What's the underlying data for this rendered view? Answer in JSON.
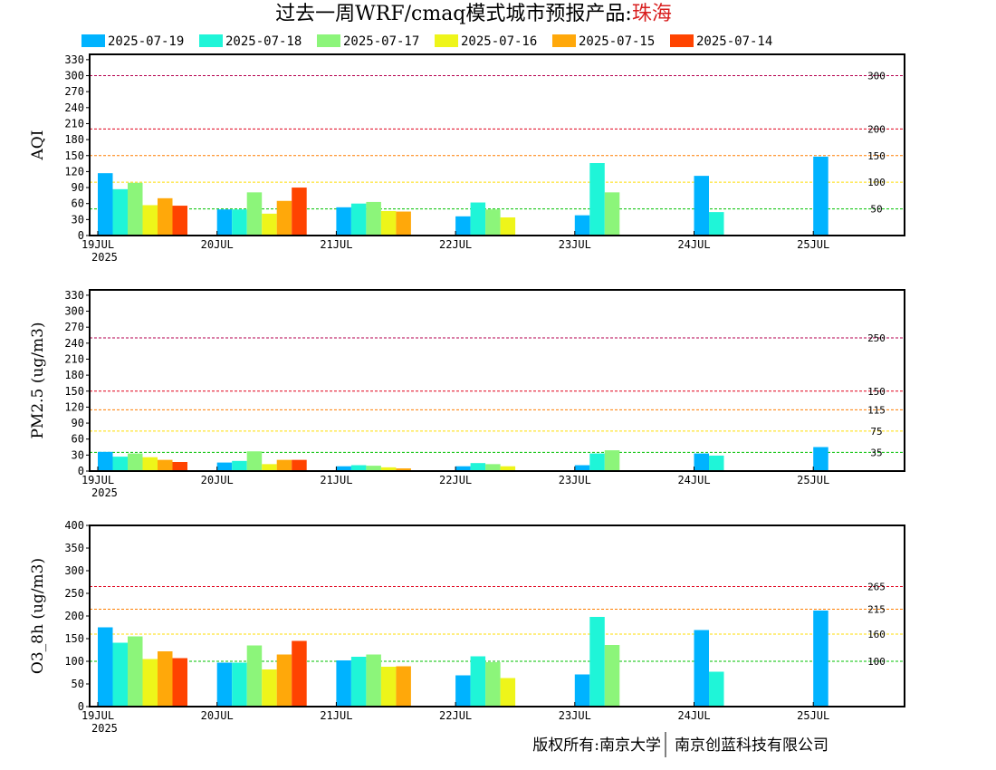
{
  "title": {
    "main": "过去一周WRF/cmaq模式城市预报产品:",
    "city": "珠海",
    "city_color": "#d81e1e"
  },
  "legend": [
    {
      "label": "2025-07-19",
      "color": "#00b3ff"
    },
    {
      "label": "2025-07-18",
      "color": "#1ff5d8"
    },
    {
      "label": "2025-07-17",
      "color": "#8cf57a"
    },
    {
      "label": "2025-07-16",
      "color": "#eef51a"
    },
    {
      "label": "2025-07-15",
      "color": "#ffa80a"
    },
    {
      "label": "2025-07-14",
      "color": "#ff4300"
    }
  ],
  "copyright": {
    "left": "版权所有:南京大学",
    "right": "南京创蓝科技有限公司"
  },
  "chart_data": [
    {
      "type": "bar",
      "ylabel": "AQI",
      "ylim": [
        0,
        340
      ],
      "yticks": [
        0,
        30,
        60,
        90,
        120,
        150,
        180,
        210,
        240,
        270,
        300,
        330
      ],
      "categories": [
        "19JUL",
        "20JUL",
        "21JUL",
        "22JUL",
        "23JUL",
        "24JUL",
        "25JUL"
      ],
      "year_label": "2025",
      "thresholds": [
        {
          "value": 300,
          "label": "300",
          "color": "#b5004f"
        },
        {
          "value": 200,
          "label": "200",
          "color": "#e0001b"
        },
        {
          "value": 150,
          "label": "150",
          "color": "#ff7e00"
        },
        {
          "value": 100,
          "label": "100",
          "color": "#ffdd00"
        },
        {
          "value": 50,
          "label": "50",
          "color": "#00c000"
        }
      ],
      "series": [
        {
          "name": "2025-07-19",
          "values": [
            117,
            49,
            53,
            36,
            38,
            112,
            148
          ]
        },
        {
          "name": "2025-07-18",
          "values": [
            87,
            49,
            60,
            62,
            136,
            44,
            null
          ]
        },
        {
          "name": "2025-07-17",
          "values": [
            99,
            81,
            63,
            49,
            81,
            null,
            null
          ]
        },
        {
          "name": "2025-07-16",
          "values": [
            57,
            41,
            46,
            34,
            null,
            null,
            null
          ]
        },
        {
          "name": "2025-07-15",
          "values": [
            70,
            65,
            45,
            null,
            null,
            null,
            null
          ]
        },
        {
          "name": "2025-07-14",
          "values": [
            56,
            90,
            null,
            null,
            null,
            null,
            null
          ]
        }
      ]
    },
    {
      "type": "bar",
      "ylabel": "PM2.5 (ug/m3)",
      "ylim": [
        0,
        340
      ],
      "yticks": [
        0,
        30,
        60,
        90,
        120,
        150,
        180,
        210,
        240,
        270,
        300,
        330
      ],
      "categories": [
        "19JUL",
        "20JUL",
        "21JUL",
        "22JUL",
        "23JUL",
        "24JUL",
        "25JUL"
      ],
      "year_label": "2025",
      "thresholds": [
        {
          "value": 250,
          "label": "250",
          "color": "#b5004f"
        },
        {
          "value": 150,
          "label": "150",
          "color": "#e0001b"
        },
        {
          "value": 115,
          "label": "115",
          "color": "#ff7e00"
        },
        {
          "value": 75,
          "label": "75",
          "color": "#ffdd00"
        },
        {
          "value": 35,
          "label": "35",
          "color": "#00c000"
        }
      ],
      "series": [
        {
          "name": "2025-07-19",
          "values": [
            36,
            16,
            9,
            9,
            11,
            33,
            45
          ]
        },
        {
          "name": "2025-07-18",
          "values": [
            27,
            19,
            11,
            15,
            33,
            29,
            null
          ]
        },
        {
          "name": "2025-07-17",
          "values": [
            33,
            37,
            10,
            13,
            39,
            null,
            null
          ]
        },
        {
          "name": "2025-07-16",
          "values": [
            26,
            13,
            7,
            9,
            null,
            null,
            null
          ]
        },
        {
          "name": "2025-07-15",
          "values": [
            21,
            21,
            5,
            null,
            null,
            null,
            null
          ]
        },
        {
          "name": "2025-07-14",
          "values": [
            17,
            21,
            null,
            null,
            null,
            null,
            null
          ]
        }
      ]
    },
    {
      "type": "bar",
      "ylabel": "O3_8h (ug/m3)",
      "ylim": [
        0,
        400
      ],
      "yticks": [
        0,
        50,
        100,
        150,
        200,
        250,
        300,
        350,
        400
      ],
      "categories": [
        "19JUL",
        "20JUL",
        "21JUL",
        "22JUL",
        "23JUL",
        "24JUL",
        "25JUL"
      ],
      "year_label": "2025",
      "thresholds": [
        {
          "value": 265,
          "label": "265",
          "color": "#e0001b"
        },
        {
          "value": 215,
          "label": "215",
          "color": "#ff7e00"
        },
        {
          "value": 160,
          "label": "160",
          "color": "#ffdd00"
        },
        {
          "value": 100,
          "label": "100",
          "color": "#00c000"
        }
      ],
      "series": [
        {
          "name": "2025-07-19",
          "values": [
            175,
            97,
            102,
            69,
            71,
            169,
            212
          ]
        },
        {
          "name": "2025-07-18",
          "values": [
            141,
            97,
            110,
            111,
            198,
            77,
            null
          ]
        },
        {
          "name": "2025-07-17",
          "values": [
            155,
            135,
            115,
            98,
            136,
            null,
            null
          ]
        },
        {
          "name": "2025-07-16",
          "values": [
            105,
            82,
            88,
            63,
            null,
            null,
            null
          ]
        },
        {
          "name": "2025-07-15",
          "values": [
            122,
            115,
            89,
            null,
            null,
            null,
            null
          ]
        },
        {
          "name": "2025-07-14",
          "values": [
            107,
            145,
            null,
            null,
            null,
            null,
            null
          ]
        }
      ]
    }
  ]
}
